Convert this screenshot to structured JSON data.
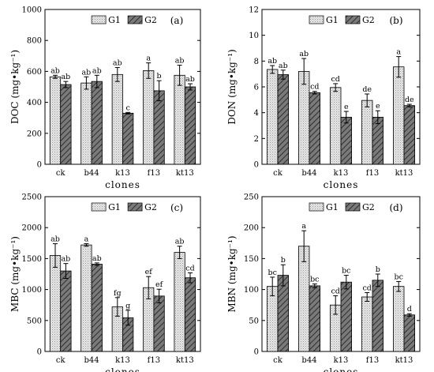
{
  "chart_data": [
    {
      "type": "bar",
      "panel_label": "(a)",
      "categories": [
        "ck",
        "b44",
        "k13",
        "f13",
        "kt13"
      ],
      "xlabel": "clones",
      "ylabel": "DOC (mg•kg⁻¹)",
      "ylim": [
        0,
        1000
      ],
      "yticks": [
        0,
        200,
        400,
        600,
        800,
        1000
      ],
      "legend": [
        "G1",
        "G2"
      ],
      "series": [
        {
          "name": "G1",
          "values": [
            565,
            525,
            580,
            605,
            575
          ],
          "errors": [
            10,
            40,
            45,
            50,
            65
          ],
          "letters": [
            "ab",
            "ab",
            "ab",
            "a",
            "ab"
          ]
        },
        {
          "name": "G2",
          "values": [
            515,
            535,
            330,
            475,
            500
          ],
          "errors": [
            20,
            40,
            5,
            65,
            20
          ],
          "letters": [
            "ab",
            "ab",
            "c",
            "b",
            "ab"
          ]
        }
      ]
    },
    {
      "type": "bar",
      "panel_label": "(b)",
      "categories": [
        "ck",
        "b44",
        "k13",
        "f13",
        "kt13"
      ],
      "xlabel": "clones",
      "ylabel": "DON (mg•kg⁻¹)",
      "ylim": [
        0,
        12
      ],
      "yticks": [
        0,
        2,
        4,
        6,
        8,
        10,
        12
      ],
      "legend": [
        "G1",
        "G2"
      ],
      "series": [
        {
          "name": "G1",
          "values": [
            7.35,
            7.2,
            5.95,
            4.95,
            7.55
          ],
          "errors": [
            0.3,
            1.0,
            0.3,
            0.5,
            0.8
          ],
          "letters": [
            "ab",
            "ab",
            "cd",
            "de",
            "a"
          ]
        },
        {
          "name": "G2",
          "values": [
            6.95,
            5.55,
            3.65,
            3.65,
            4.55
          ],
          "errors": [
            0.35,
            0.1,
            0.45,
            0.5,
            0.1
          ],
          "letters": [
            "ab",
            "cd",
            "e",
            "e",
            "de"
          ]
        }
      ]
    },
    {
      "type": "bar",
      "panel_label": "(c)",
      "categories": [
        "ck",
        "b44",
        "k13",
        "f13",
        "kt13"
      ],
      "xlabel": "clones",
      "ylabel": "MBC (mg•kg⁻¹)",
      "ylim": [
        0,
        2500
      ],
      "yticks": [
        0,
        500,
        1000,
        1500,
        2000,
        2500
      ],
      "legend": [
        "G1",
        "G2"
      ],
      "series": [
        {
          "name": "G1",
          "values": [
            1550,
            1720,
            720,
            1030,
            1600
          ],
          "errors": [
            190,
            20,
            150,
            180,
            100
          ],
          "letters": [
            "ab",
            "a",
            "fg",
            "ef",
            "ab"
          ]
        },
        {
          "name": "G2",
          "values": [
            1300,
            1410,
            545,
            895,
            1190
          ],
          "errors": [
            120,
            20,
            120,
            110,
            80
          ],
          "letters": [
            "ab",
            "ab",
            "g",
            "ef",
            "cd"
          ]
        }
      ]
    },
    {
      "type": "bar",
      "panel_label": "(d)",
      "categories": [
        "ck",
        "b44",
        "k13",
        "f13",
        "kt13"
      ],
      "xlabel": "clones",
      "ylabel": "MBN (mg•kg⁻¹)",
      "ylim": [
        0,
        250
      ],
      "yticks": [
        0,
        50,
        100,
        150,
        200,
        250
      ],
      "legend": [
        "G1",
        "G2"
      ],
      "series": [
        {
          "name": "G1",
          "values": [
            105,
            170,
            75,
            88,
            105
          ],
          "errors": [
            15,
            25,
            15,
            7,
            8
          ],
          "letters": [
            "bc",
            "a",
            "cd",
            "cd",
            "bc"
          ]
        },
        {
          "name": "G2",
          "values": [
            123,
            106,
            112,
            115,
            59
          ],
          "errors": [
            17,
            3,
            11,
            10,
            2
          ],
          "letters": [
            "b",
            "bc",
            "bc",
            "b",
            "d"
          ]
        }
      ]
    }
  ]
}
